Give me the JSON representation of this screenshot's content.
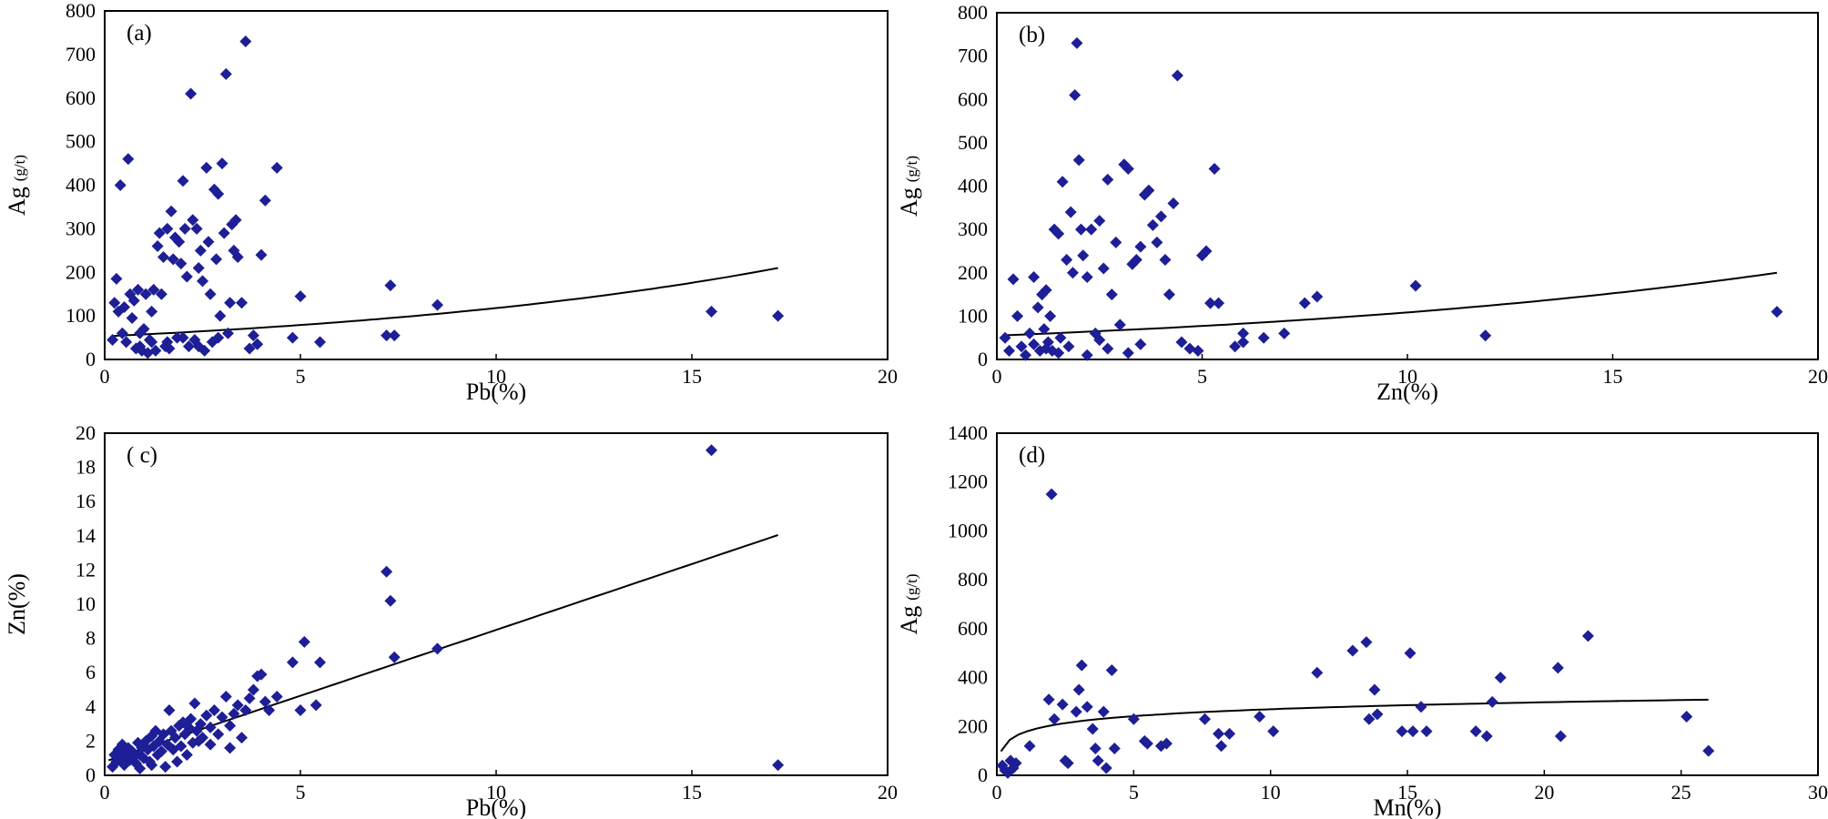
{
  "colors": {
    "marker": "#1e1e96",
    "trend": "#000000",
    "frame": "#000000",
    "background": "#ffffff"
  },
  "chart_data": [
    {
      "type": "scatter",
      "panel_label": "(a)",
      "xlabel": "Pb(%)",
      "ylabel": "Ag",
      "ylabel_unit": "(g/t)",
      "xlim": [
        0,
        20
      ],
      "ylim": [
        0,
        800
      ],
      "xticks": [
        0,
        5,
        10,
        15,
        20
      ],
      "yticks": [
        0,
        100,
        200,
        300,
        400,
        500,
        600,
        700,
        800
      ],
      "ytick_labels": [
        "0",
        "100",
        "200",
        "300",
        "400",
        "500",
        "600",
        "700",
        "800"
      ],
      "trendline": {
        "kind": "exponential",
        "a": 53,
        "b": 0.08,
        "x_range": [
          0.2,
          17.2
        ]
      },
      "points": [
        [
          0.2,
          45
        ],
        [
          0.25,
          130
        ],
        [
          0.3,
          185
        ],
        [
          0.35,
          110
        ],
        [
          0.4,
          400
        ],
        [
          0.45,
          60
        ],
        [
          0.5,
          120
        ],
        [
          0.55,
          40
        ],
        [
          0.6,
          460
        ],
        [
          0.65,
          150
        ],
        [
          0.7,
          95
        ],
        [
          0.75,
          135
        ],
        [
          0.8,
          25
        ],
        [
          0.85,
          160
        ],
        [
          0.9,
          60
        ],
        [
          0.95,
          20
        ],
        [
          1.0,
          70
        ],
        [
          1.05,
          150
        ],
        [
          1.1,
          15
        ],
        [
          1.15,
          45
        ],
        [
          1.2,
          110
        ],
        [
          1.25,
          160
        ],
        [
          1.3,
          20
        ],
        [
          1.35,
          260
        ],
        [
          1.4,
          290
        ],
        [
          1.45,
          150
        ],
        [
          1.5,
          235
        ],
        [
          1.55,
          30
        ],
        [
          1.6,
          300
        ],
        [
          1.65,
          25
        ],
        [
          1.7,
          340
        ],
        [
          1.75,
          230
        ],
        [
          1.8,
          280
        ],
        [
          1.85,
          50
        ],
        [
          1.9,
          270
        ],
        [
          1.95,
          220
        ],
        [
          2.0,
          410
        ],
        [
          2.05,
          300
        ],
        [
          2.1,
          190
        ],
        [
          2.15,
          30
        ],
        [
          2.2,
          610
        ],
        [
          2.25,
          320
        ],
        [
          2.3,
          45
        ],
        [
          2.35,
          300
        ],
        [
          2.4,
          210
        ],
        [
          2.45,
          250
        ],
        [
          2.5,
          180
        ],
        [
          2.55,
          20
        ],
        [
          2.6,
          440
        ],
        [
          2.65,
          270
        ],
        [
          2.7,
          150
        ],
        [
          2.75,
          40
        ],
        [
          2.8,
          390
        ],
        [
          2.85,
          230
        ],
        [
          2.9,
          380
        ],
        [
          2.95,
          100
        ],
        [
          3.0,
          450
        ],
        [
          3.05,
          290
        ],
        [
          3.1,
          655
        ],
        [
          3.15,
          60
        ],
        [
          3.2,
          130
        ],
        [
          3.25,
          310
        ],
        [
          3.3,
          250
        ],
        [
          3.35,
          320
        ],
        [
          3.4,
          235
        ],
        [
          3.5,
          130
        ],
        [
          3.6,
          730
        ],
        [
          3.7,
          25
        ],
        [
          3.8,
          55
        ],
        [
          3.9,
          35
        ],
        [
          4.0,
          240
        ],
        [
          4.1,
          365
        ],
        [
          4.4,
          440
        ],
        [
          4.8,
          50
        ],
        [
          5.0,
          145
        ],
        [
          5.5,
          40
        ],
        [
          7.2,
          55
        ],
        [
          7.3,
          170
        ],
        [
          7.4,
          55
        ],
        [
          8.5,
          125
        ],
        [
          15.5,
          110
        ],
        [
          17.2,
          100
        ],
        [
          1.2,
          40
        ],
        [
          1.6,
          40
        ],
        [
          2.0,
          50
        ],
        [
          2.4,
          30
        ],
        [
          2.9,
          50
        ],
        [
          0.9,
          30
        ]
      ]
    },
    {
      "type": "scatter",
      "panel_label": "(b)",
      "xlabel": "Zn(%)",
      "ylabel": "Ag",
      "ylabel_unit": "(g/t)",
      "xlim": [
        0,
        20
      ],
      "ylim": [
        0,
        800
      ],
      "xticks": [
        0,
        5,
        10,
        15,
        20
      ],
      "yticks": [
        0,
        100,
        200,
        300,
        400,
        500,
        600,
        700,
        800
      ],
      "ytick_labels": [
        "0",
        "100",
        "200",
        "300",
        "400",
        "500",
        "600",
        "700",
        "800"
      ],
      "trendline": {
        "kind": "exponential",
        "a": 55,
        "b": 0.068,
        "x_range": [
          0.2,
          19
        ]
      },
      "points": [
        [
          0.2,
          50
        ],
        [
          0.3,
          20
        ],
        [
          0.4,
          185
        ],
        [
          0.5,
          100
        ],
        [
          0.6,
          30
        ],
        [
          0.7,
          10
        ],
        [
          0.8,
          60
        ],
        [
          0.9,
          190
        ],
        [
          1.0,
          120
        ],
        [
          1.05,
          20
        ],
        [
          1.1,
          150
        ],
        [
          1.15,
          70
        ],
        [
          1.2,
          160
        ],
        [
          1.25,
          40
        ],
        [
          1.3,
          100
        ],
        [
          1.35,
          20
        ],
        [
          1.4,
          300
        ],
        [
          1.5,
          290
        ],
        [
          1.55,
          50
        ],
        [
          1.6,
          410
        ],
        [
          1.7,
          230
        ],
        [
          1.75,
          30
        ],
        [
          1.8,
          340
        ],
        [
          1.85,
          200
        ],
        [
          1.9,
          610
        ],
        [
          1.95,
          730
        ],
        [
          2.0,
          460
        ],
        [
          2.05,
          300
        ],
        [
          2.1,
          240
        ],
        [
          2.2,
          190
        ],
        [
          2.3,
          300
        ],
        [
          2.4,
          60
        ],
        [
          2.5,
          320
        ],
        [
          2.6,
          210
        ],
        [
          2.7,
          415
        ],
        [
          2.8,
          150
        ],
        [
          2.9,
          270
        ],
        [
          3.0,
          80
        ],
        [
          3.1,
          450
        ],
        [
          3.2,
          440
        ],
        [
          3.3,
          220
        ],
        [
          3.4,
          230
        ],
        [
          3.5,
          260
        ],
        [
          3.6,
          380
        ],
        [
          3.7,
          390
        ],
        [
          3.8,
          310
        ],
        [
          3.9,
          270
        ],
        [
          4.0,
          330
        ],
        [
          4.1,
          230
        ],
        [
          4.2,
          150
        ],
        [
          4.3,
          360
        ],
        [
          4.4,
          655
        ],
        [
          4.5,
          40
        ],
        [
          4.7,
          25
        ],
        [
          4.9,
          20
        ],
        [
          5.0,
          240
        ],
        [
          5.1,
          250
        ],
        [
          5.2,
          130
        ],
        [
          5.3,
          440
        ],
        [
          5.4,
          130
        ],
        [
          5.8,
          30
        ],
        [
          6.0,
          60
        ],
        [
          6.0,
          40
        ],
        [
          6.5,
          50
        ],
        [
          7.0,
          60
        ],
        [
          7.5,
          130
        ],
        [
          7.8,
          145
        ],
        [
          10.2,
          170
        ],
        [
          11.9,
          55
        ],
        [
          19.0,
          110
        ],
        [
          1.5,
          15
        ],
        [
          2.2,
          10
        ],
        [
          2.7,
          25
        ],
        [
          3.2,
          15
        ],
        [
          0.9,
          35
        ],
        [
          1.2,
          25
        ],
        [
          2.5,
          45
        ],
        [
          3.5,
          35
        ]
      ]
    },
    {
      "type": "scatter",
      "panel_label": "( c)",
      "xlabel": "Pb(%)",
      "ylabel": "Zn(%)",
      "ylabel_unit": "",
      "xlim": [
        0,
        20
      ],
      "ylim": [
        0,
        20
      ],
      "xticks": [
        0,
        5,
        10,
        15,
        20
      ],
      "yticks": [
        0,
        2,
        4,
        6,
        8,
        10,
        12,
        14,
        16,
        18,
        20
      ],
      "ytick_labels": [
        "0",
        "2",
        "4",
        "6",
        "8",
        "10",
        "12",
        "14",
        "16",
        "18",
        "20"
      ],
      "trendline": {
        "kind": "linear",
        "slope": 0.77,
        "intercept": 0.8,
        "x_range": [
          0.1,
          17.2
        ]
      },
      "points": [
        [
          0.2,
          0.5
        ],
        [
          0.25,
          1.2
        ],
        [
          0.3,
          0.8
        ],
        [
          0.35,
          1.5
        ],
        [
          0.4,
          1.0
        ],
        [
          0.45,
          1.8
        ],
        [
          0.5,
          0.6
        ],
        [
          0.55,
          1.3
        ],
        [
          0.6,
          1.6
        ],
        [
          0.65,
          0.9
        ],
        [
          0.7,
          1.4
        ],
        [
          0.75,
          1.1
        ],
        [
          0.8,
          0.7
        ],
        [
          0.85,
          1.9
        ],
        [
          0.9,
          1.2
        ],
        [
          0.95,
          1.6
        ],
        [
          1.0,
          1.0
        ],
        [
          1.05,
          2.0
        ],
        [
          1.1,
          1.5
        ],
        [
          1.15,
          0.8
        ],
        [
          1.2,
          2.3
        ],
        [
          1.25,
          1.7
        ],
        [
          1.3,
          2.6
        ],
        [
          1.35,
          1.2
        ],
        [
          1.4,
          2.0
        ],
        [
          1.45,
          1.4
        ],
        [
          1.5,
          2.4
        ],
        [
          1.55,
          0.5
        ],
        [
          1.6,
          1.8
        ],
        [
          1.65,
          3.8
        ],
        [
          1.7,
          2.6
        ],
        [
          1.75,
          1.5
        ],
        [
          1.8,
          2.2
        ],
        [
          1.85,
          0.8
        ],
        [
          1.9,
          2.9
        ],
        [
          1.95,
          1.7
        ],
        [
          2.0,
          3.1
        ],
        [
          2.05,
          2.4
        ],
        [
          2.1,
          1.2
        ],
        [
          2.15,
          2.8
        ],
        [
          2.2,
          3.3
        ],
        [
          2.25,
          1.9
        ],
        [
          2.3,
          4.2
        ],
        [
          2.35,
          2.6
        ],
        [
          2.4,
          2.0
        ],
        [
          2.45,
          3.0
        ],
        [
          2.5,
          2.2
        ],
        [
          2.6,
          3.5
        ],
        [
          2.7,
          2.8
        ],
        [
          2.8,
          3.8
        ],
        [
          2.9,
          2.4
        ],
        [
          3.0,
          3.4
        ],
        [
          3.1,
          4.6
        ],
        [
          3.2,
          2.9
        ],
        [
          3.3,
          3.6
        ],
        [
          3.4,
          4.1
        ],
        [
          3.5,
          2.2
        ],
        [
          3.6,
          3.8
        ],
        [
          3.7,
          4.5
        ],
        [
          3.8,
          5.0
        ],
        [
          3.9,
          5.8
        ],
        [
          4.0,
          5.9
        ],
        [
          4.1,
          4.3
        ],
        [
          4.2,
          3.8
        ],
        [
          4.4,
          4.6
        ],
        [
          4.8,
          6.6
        ],
        [
          5.0,
          3.8
        ],
        [
          5.1,
          7.8
        ],
        [
          5.4,
          4.1
        ],
        [
          5.5,
          6.6
        ],
        [
          7.2,
          11.9
        ],
        [
          7.3,
          10.2
        ],
        [
          7.4,
          6.9
        ],
        [
          8.5,
          7.4
        ],
        [
          15.5,
          19.0
        ],
        [
          17.2,
          0.6
        ],
        [
          1.2,
          0.6
        ],
        [
          2.7,
          1.8
        ],
        [
          3.2,
          1.6
        ],
        [
          0.9,
          0.4
        ]
      ]
    },
    {
      "type": "scatter",
      "panel_label": "(d)",
      "xlabel": "Mn(%)",
      "ylabel": "Ag",
      "ylabel_unit": "(g/t)",
      "xlim": [
        0,
        30
      ],
      "ylim": [
        0,
        1400
      ],
      "xticks": [
        0,
        5,
        10,
        15,
        20,
        25,
        30
      ],
      "yticks": [
        0,
        200,
        400,
        600,
        800,
        1000,
        1200,
        1400
      ],
      "ytick_labels": [
        "0",
        "200",
        "400",
        "600",
        "800",
        "1000",
        "1200",
        "1400"
      ],
      "trendline": {
        "kind": "logarithmic",
        "a": 176,
        "b": 41,
        "x_range": [
          0.15,
          26
        ]
      },
      "points": [
        [
          0.2,
          40
        ],
        [
          0.3,
          20
        ],
        [
          0.4,
          10
        ],
        [
          0.5,
          60
        ],
        [
          0.6,
          30
        ],
        [
          0.7,
          50
        ],
        [
          1.2,
          120
        ],
        [
          1.9,
          310
        ],
        [
          2.0,
          1150
        ],
        [
          2.1,
          230
        ],
        [
          2.4,
          290
        ],
        [
          2.5,
          60
        ],
        [
          2.6,
          50
        ],
        [
          2.9,
          260
        ],
        [
          3.0,
          350
        ],
        [
          3.1,
          450
        ],
        [
          3.3,
          280
        ],
        [
          3.5,
          190
        ],
        [
          3.6,
          110
        ],
        [
          3.7,
          60
        ],
        [
          3.9,
          260
        ],
        [
          4.0,
          30
        ],
        [
          4.2,
          430
        ],
        [
          4.3,
          110
        ],
        [
          5.0,
          230
        ],
        [
          5.4,
          140
        ],
        [
          5.5,
          130
        ],
        [
          6.0,
          120
        ],
        [
          6.2,
          130
        ],
        [
          7.6,
          230
        ],
        [
          8.1,
          170
        ],
        [
          8.2,
          120
        ],
        [
          8.5,
          170
        ],
        [
          9.6,
          240
        ],
        [
          10.1,
          180
        ],
        [
          11.7,
          420
        ],
        [
          13.0,
          510
        ],
        [
          13.5,
          545
        ],
        [
          13.6,
          230
        ],
        [
          13.8,
          350
        ],
        [
          13.9,
          250
        ],
        [
          14.8,
          180
        ],
        [
          15.1,
          500
        ],
        [
          15.2,
          180
        ],
        [
          15.5,
          280
        ],
        [
          15.7,
          180
        ],
        [
          17.5,
          180
        ],
        [
          17.9,
          160
        ],
        [
          18.1,
          300
        ],
        [
          18.4,
          400
        ],
        [
          20.5,
          440
        ],
        [
          20.6,
          160
        ],
        [
          21.6,
          570
        ],
        [
          25.2,
          240
        ],
        [
          26.0,
          100
        ]
      ]
    }
  ]
}
